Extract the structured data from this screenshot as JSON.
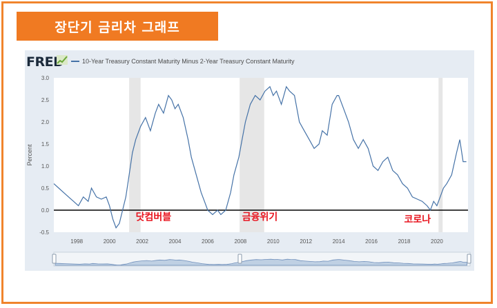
{
  "banner": {
    "title": "장단기 금리차 그래프"
  },
  "brand": {
    "logo_text": "FRED"
  },
  "colors": {
    "frame": "#f0842c",
    "banner": "#f07a22",
    "series": "#4572a7",
    "recession": "#e6e6e6",
    "annotation": "#e8141e"
  },
  "chart_data": {
    "type": "line",
    "title": "",
    "xlabel": "",
    "ylabel": "Percent",
    "ylim": [
      -0.5,
      3.0
    ],
    "xlim": [
      1996.6,
      2021.9
    ],
    "y_ticks": [
      "3.0",
      "2.5",
      "2.0",
      "1.5",
      "1.0",
      "0.5",
      "0.0",
      "-0.5"
    ],
    "x_ticks": [
      "1998",
      "2000",
      "2002",
      "2004",
      "2006",
      "2008",
      "2010",
      "2012",
      "2014",
      "2016",
      "2018",
      "2020"
    ],
    "grid": false,
    "zero_line": true,
    "legend": {
      "placement": "top-left",
      "entry": "10-Year Treasury Constant Maturity Minus 2-Year Treasury Constant Maturity"
    },
    "series": [
      {
        "name": "10-Year Treasury Constant Maturity Minus 2-Year Treasury Constant Maturity",
        "x": [
          1996.6,
          1996.9,
          1997.2,
          1997.5,
          1997.8,
          1998.1,
          1998.4,
          1998.7,
          1998.9,
          1999.2,
          1999.5,
          1999.8,
          2000.0,
          2000.2,
          2000.4,
          2000.6,
          2000.8,
          2001.0,
          2001.2,
          2001.4,
          2001.6,
          2001.9,
          2002.2,
          2002.5,
          2002.8,
          2003.0,
          2003.3,
          2003.6,
          2003.8,
          2004.0,
          2004.2,
          2004.5,
          2004.8,
          2005.0,
          2005.3,
          2005.6,
          2005.8,
          2006.0,
          2006.3,
          2006.6,
          2006.8,
          2007.1,
          2007.4,
          2007.6,
          2007.9,
          2008.1,
          2008.3,
          2008.6,
          2008.9,
          2009.2,
          2009.5,
          2009.8,
          2010.0,
          2010.2,
          2010.5,
          2010.8,
          2011.0,
          2011.3,
          2011.6,
          2011.9,
          2012.2,
          2012.5,
          2012.8,
          2013.0,
          2013.3,
          2013.6,
          2013.9,
          2014.0,
          2014.3,
          2014.6,
          2014.9,
          2015.2,
          2015.5,
          2015.8,
          2016.1,
          2016.4,
          2016.7,
          2017.0,
          2017.3,
          2017.6,
          2017.9,
          2018.2,
          2018.5,
          2018.8,
          2019.1,
          2019.4,
          2019.6,
          2019.8,
          2020.0,
          2020.2,
          2020.4,
          2020.6,
          2020.9,
          2021.2,
          2021.4,
          2021.6,
          2021.8
        ],
        "y": [
          0.6,
          0.5,
          0.4,
          0.3,
          0.2,
          0.1,
          0.3,
          0.2,
          0.5,
          0.3,
          0.25,
          0.3,
          0.1,
          -0.2,
          -0.4,
          -0.3,
          0.0,
          0.3,
          0.8,
          1.3,
          1.6,
          1.9,
          2.1,
          1.8,
          2.2,
          2.4,
          2.2,
          2.6,
          2.5,
          2.3,
          2.4,
          2.1,
          1.6,
          1.2,
          0.8,
          0.4,
          0.2,
          0.0,
          -0.1,
          0.0,
          -0.1,
          0.0,
          0.4,
          0.8,
          1.2,
          1.6,
          2.0,
          2.4,
          2.6,
          2.5,
          2.7,
          2.8,
          2.6,
          2.7,
          2.4,
          2.8,
          2.7,
          2.6,
          2.0,
          1.8,
          1.6,
          1.4,
          1.5,
          1.8,
          1.7,
          2.4,
          2.6,
          2.6,
          2.3,
          2.0,
          1.6,
          1.4,
          1.6,
          1.4,
          1.0,
          0.9,
          1.1,
          1.2,
          0.9,
          0.8,
          0.6,
          0.5,
          0.3,
          0.25,
          0.2,
          0.1,
          0.0,
          0.2,
          0.1,
          0.3,
          0.5,
          0.6,
          0.8,
          1.3,
          1.6,
          1.1,
          1.1
        ]
      }
    ],
    "recessions": [
      [
        2001.2,
        2001.9
      ],
      [
        2007.95,
        2009.45
      ],
      [
        2020.1,
        2020.35
      ]
    ],
    "annotations": [
      {
        "label": "닷컴버블",
        "x": 2001.6,
        "y": -0.23
      },
      {
        "label": "금융위기",
        "x": 2008.1,
        "y": -0.23
      },
      {
        "label": "코로나",
        "x": 2018.0,
        "y": -0.28
      }
    ]
  }
}
